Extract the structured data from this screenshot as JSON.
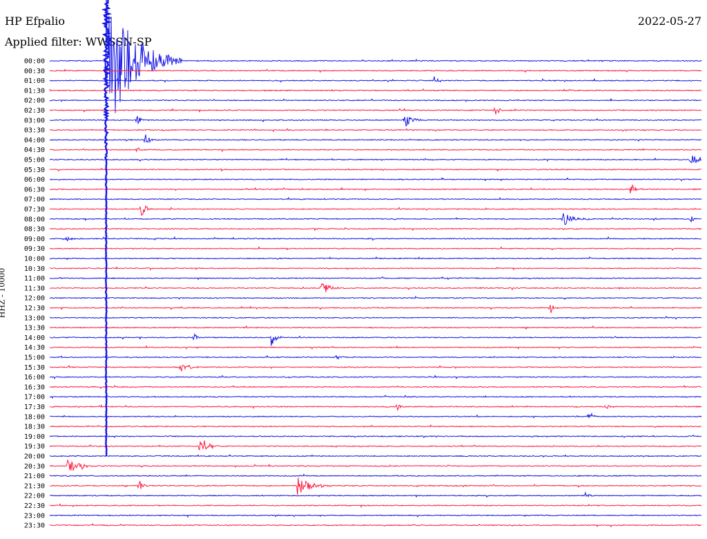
{
  "header": {
    "station": "HP Efpalio",
    "filter": "Applied filter: WWSSN-SP",
    "date": "2022-05-27"
  },
  "colors": {
    "blue": "#1414e6",
    "red": "#ff1a40",
    "background": "#ffffff",
    "text": "#000000"
  },
  "chart_data": {
    "type": "line",
    "title": "HP Efpalio",
    "date": "2022-05-27",
    "filter": "WWSSN-SP",
    "ylabel": "HHZ - 10000",
    "xlabel": "",
    "grid": false,
    "trace_minutes": 30,
    "row_labels": [
      "00:00",
      "00:30",
      "01:00",
      "01:30",
      "02:00",
      "02:30",
      "03:00",
      "03:30",
      "04:00",
      "04:30",
      "05:00",
      "05:30",
      "06:00",
      "06:30",
      "07:00",
      "07:30",
      "08:00",
      "08:30",
      "09:00",
      "09:30",
      "10:00",
      "10:30",
      "11:00",
      "11:30",
      "12:00",
      "12:30",
      "13:00",
      "13:30",
      "14:00",
      "14:30",
      "15:00",
      "15:30",
      "16:00",
      "16:30",
      "17:00",
      "17:30",
      "18:00",
      "18:30",
      "19:00",
      "19:30",
      "20:00",
      "20:30",
      "21:00",
      "21:30",
      "22:00",
      "22:30",
      "23:00",
      "23:30"
    ],
    "trace_colors": [
      "blue",
      "red"
    ],
    "events": [
      {
        "row": 0,
        "minute": 2.6,
        "amp": 115,
        "dur": 3.5,
        "note": "large teleseismic signal, saturated"
      },
      {
        "row": 2,
        "minute": 17.7,
        "amp": 6,
        "dur": 0.6
      },
      {
        "row": 5,
        "minute": 20.5,
        "amp": 10,
        "dur": 0.5
      },
      {
        "row": 6,
        "minute": 4.0,
        "amp": 9,
        "dur": 0.6
      },
      {
        "row": 6,
        "minute": 16.3,
        "amp": 12,
        "dur": 1.0
      },
      {
        "row": 8,
        "minute": 4.4,
        "amp": 9,
        "dur": 0.6
      },
      {
        "row": 9,
        "minute": 4.0,
        "amp": 6,
        "dur": 0.4
      },
      {
        "row": 10,
        "minute": 29.5,
        "amp": 8,
        "dur": 1.5
      },
      {
        "row": 13,
        "minute": 26.7,
        "amp": 12,
        "dur": 0.6
      },
      {
        "row": 15,
        "minute": 4.2,
        "amp": 14,
        "dur": 0.6
      },
      {
        "row": 16,
        "minute": 23.6,
        "amp": 11,
        "dur": 1.4
      },
      {
        "row": 16,
        "minute": 29.5,
        "amp": 8,
        "dur": 0.3
      },
      {
        "row": 18,
        "minute": 0.7,
        "amp": 6,
        "dur": 0.8
      },
      {
        "row": 23,
        "minute": 12.5,
        "amp": 10,
        "dur": 1.2
      },
      {
        "row": 25,
        "minute": 23.0,
        "amp": 11,
        "dur": 0.5
      },
      {
        "row": 28,
        "minute": 6.6,
        "amp": 11,
        "dur": 0.4
      },
      {
        "row": 28,
        "minute": 10.2,
        "amp": 14,
        "dur": 0.6
      },
      {
        "row": 30,
        "minute": 13.2,
        "amp": 7,
        "dur": 0.5
      },
      {
        "row": 31,
        "minute": 6.0,
        "amp": 10,
        "dur": 1.0
      },
      {
        "row": 35,
        "minute": 16.0,
        "amp": 8,
        "dur": 0.3
      },
      {
        "row": 35,
        "minute": 25.6,
        "amp": 8,
        "dur": 0.3
      },
      {
        "row": 36,
        "minute": 24.8,
        "amp": 10,
        "dur": 0.4
      },
      {
        "row": 39,
        "minute": 6.9,
        "amp": 20,
        "dur": 0.9
      },
      {
        "row": 41,
        "minute": 0.8,
        "amp": 14,
        "dur": 1.4
      },
      {
        "row": 43,
        "minute": 4.1,
        "amp": 10,
        "dur": 0.5
      },
      {
        "row": 43,
        "minute": 11.4,
        "amp": 15,
        "dur": 1.7
      },
      {
        "row": 44,
        "minute": 24.6,
        "amp": 5,
        "dur": 0.8
      }
    ]
  }
}
